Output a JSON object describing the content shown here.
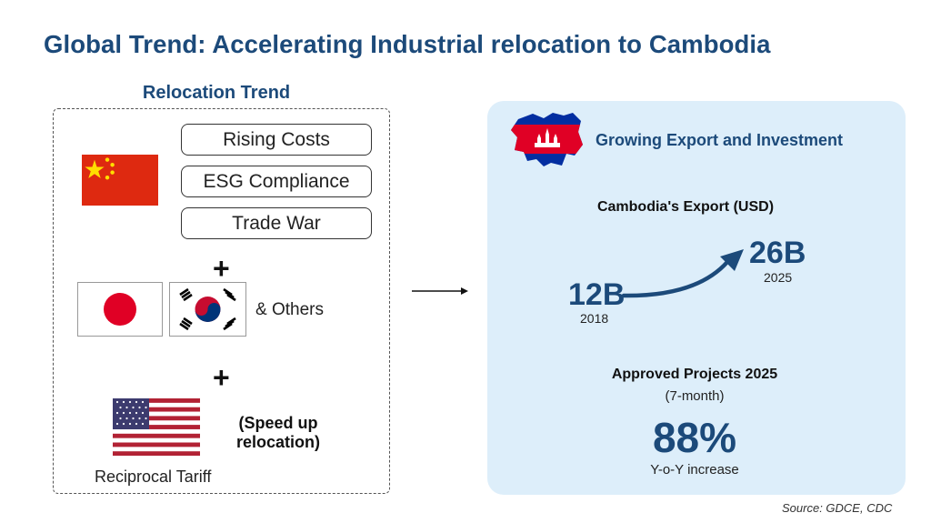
{
  "title": "Global Trend: Accelerating Industrial relocation to Cambodia",
  "relocation": {
    "heading": "Relocation Trend",
    "china_factors": [
      "Rising Costs",
      "ESG Compliance",
      "Trade War"
    ],
    "plus": "+",
    "others_label": "& Others",
    "speed_up_label": "(Speed up relocation)",
    "tariff_label": "Reciprocal Tariff",
    "flags": [
      "china-flag",
      "japan-flag",
      "south-korea-flag",
      "usa-flag"
    ]
  },
  "growth": {
    "heading": "Growing Export and Investment",
    "export_label": "Cambodia's Export (USD)",
    "export_from_value": "12B",
    "export_from_year": "2018",
    "export_to_value": "26B",
    "export_to_year": "2025",
    "projects_label": "Approved Projects 2025",
    "projects_period": "(7-month)",
    "projects_percent": "88%",
    "projects_desc": "Y-o-Y increase"
  },
  "source": "Source: GDCE, CDC",
  "colors": {
    "brand_navy": "#1c4a7a",
    "panel_bg": "#ddeefa",
    "china_red": "#de2910",
    "flag_blue": "#032ea1",
    "flag_red": "#e00025"
  }
}
